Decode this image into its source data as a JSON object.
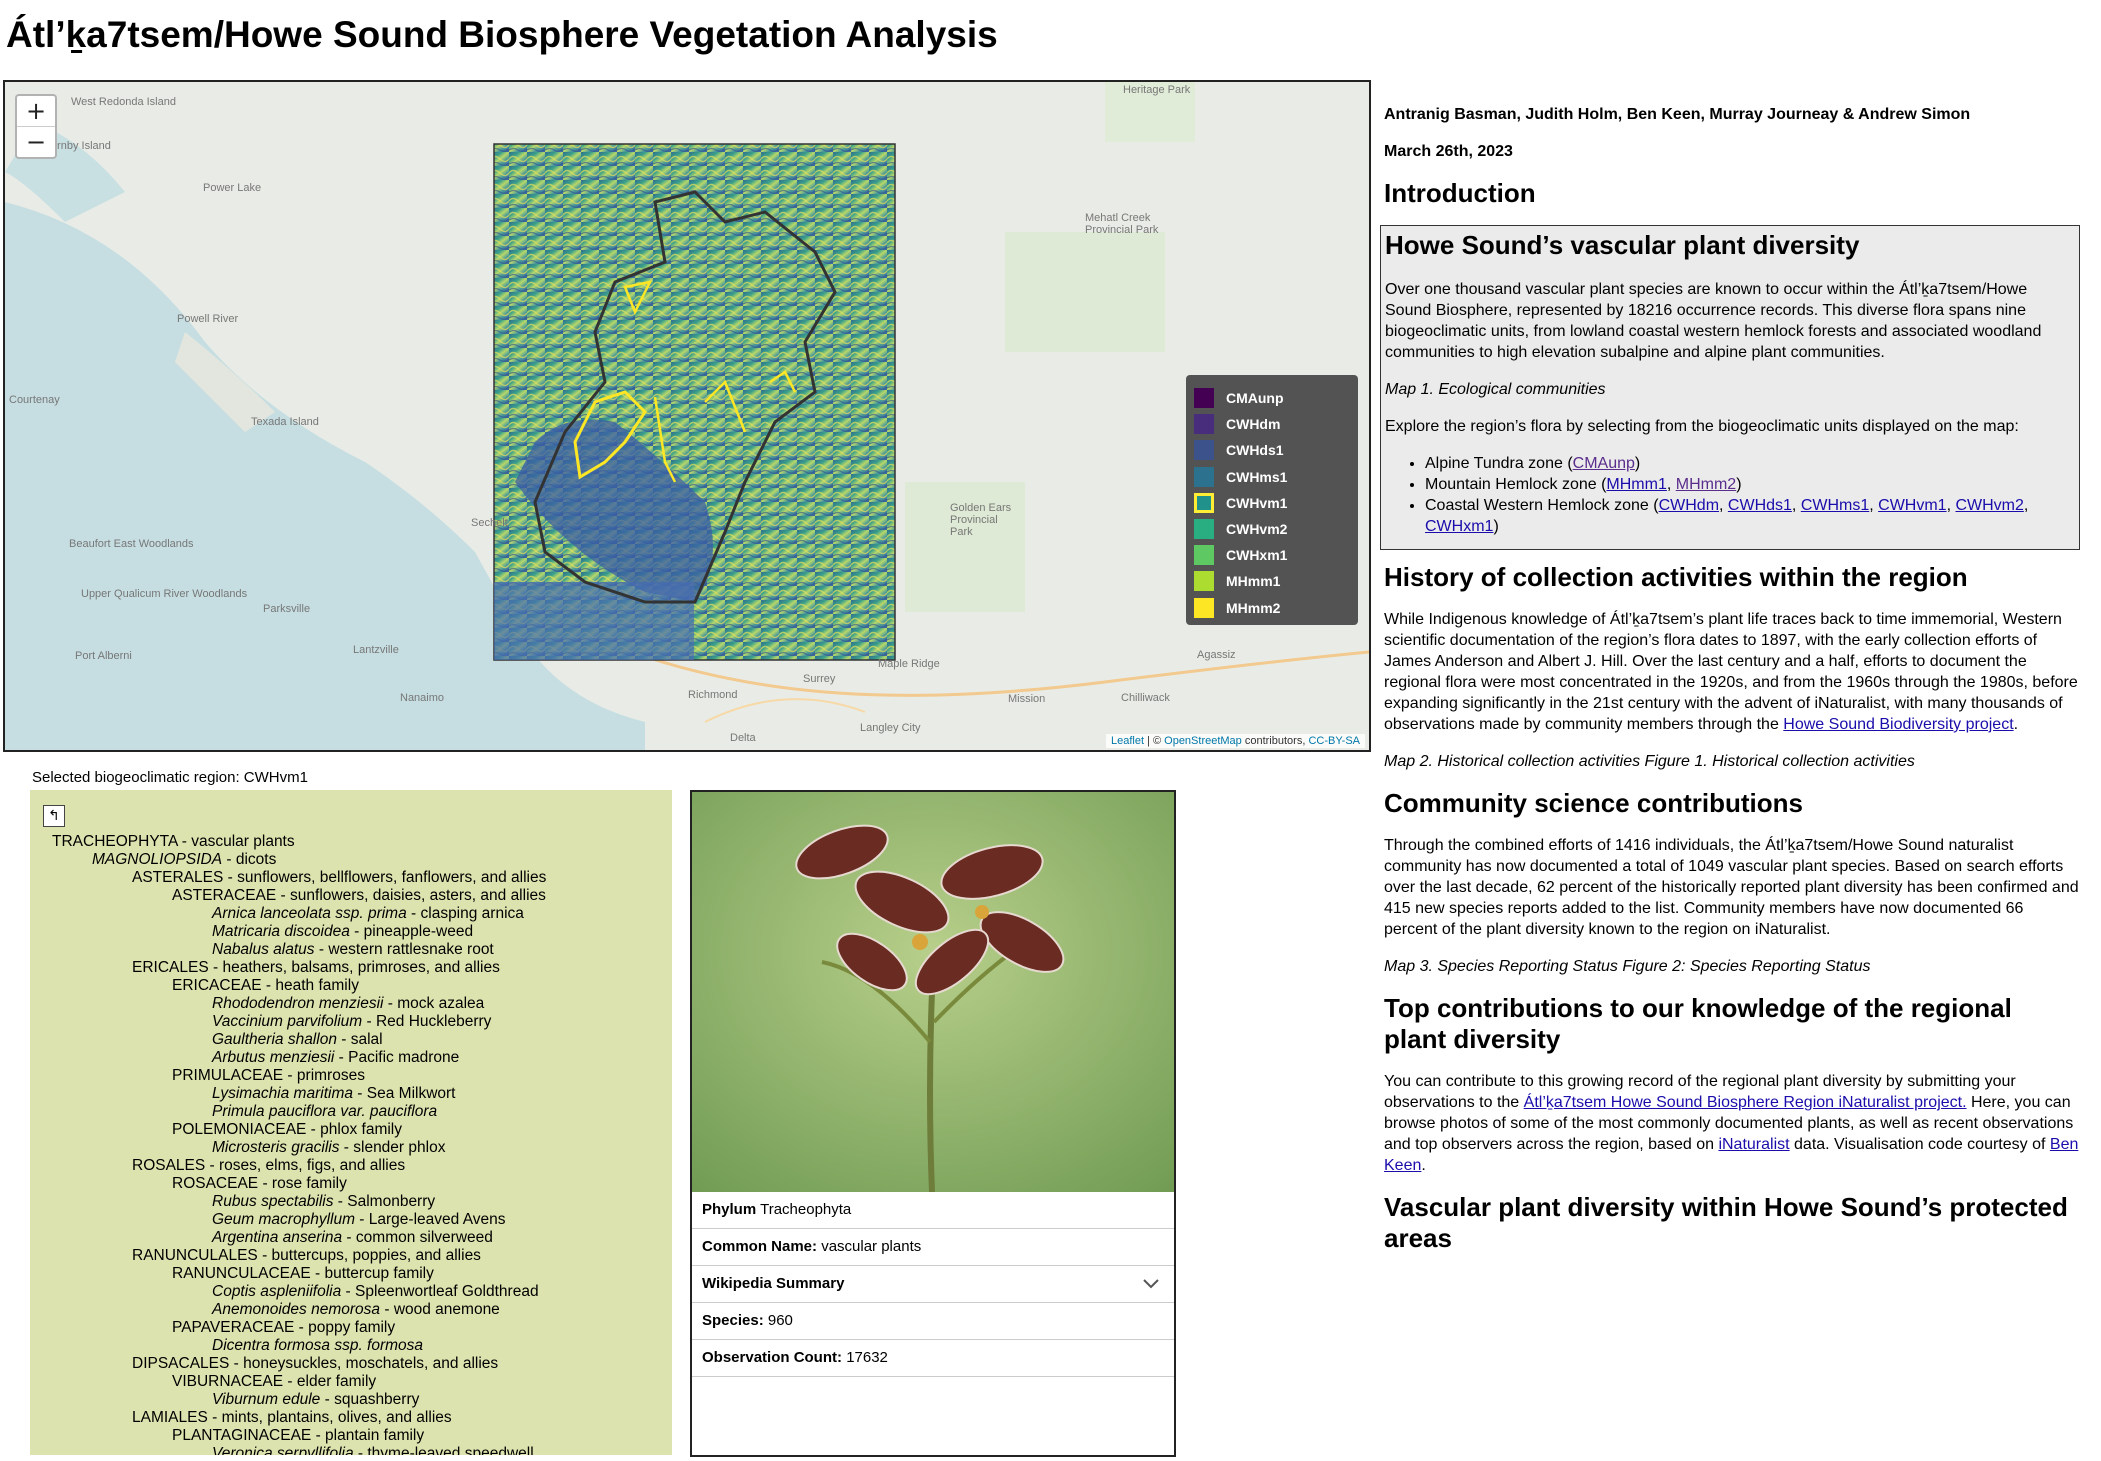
{
  "title": "Átl’ḵa7tsem/Howe Sound Biosphere Vegetation Analysis",
  "map": {
    "zoom_in": "+",
    "zoom_out": "−",
    "places": [
      "West Redonda Island",
      "Powell River",
      "Courtenay",
      "Texada Island",
      "Parksville",
      "Port Alberni",
      "Nanaimo",
      "Beaufort East Woodlands",
      "Upper Qualicum River Woodlands",
      "Lantzville",
      "Richmond",
      "Surrey",
      "Delta",
      "Langley City",
      "Maple Ridge",
      "Mission",
      "Chilliwack",
      "Agassiz",
      "Golden Ears Provincial Park",
      "Mehatl Creek Provincial Park",
      "Heritage Park",
      "Sechelt",
      "Power Lake",
      "Hornby Island"
    ],
    "legend": [
      {
        "code": "CMAunp",
        "color": "#440154"
      },
      {
        "code": "CWHdm",
        "color": "#472d7b"
      },
      {
        "code": "CWHds1",
        "color": "#3b528b"
      },
      {
        "code": "CWHms1",
        "color": "#2c728e"
      },
      {
        "code": "CWHvm1",
        "color": "#21918c"
      },
      {
        "code": "CWHvm2",
        "color": "#28ae80"
      },
      {
        "code": "CWHxm1",
        "color": "#5ec962"
      },
      {
        "code": "MHmm1",
        "color": "#addc30"
      },
      {
        "code": "MHmm2",
        "color": "#fde725"
      }
    ],
    "selected_code": "CWHvm1",
    "attribution": {
      "leaflet": "Leaflet",
      "sep": " | © ",
      "osm": "OpenStreetMap",
      "contrib": " contributors, ",
      "license": "CC-BY-SA"
    }
  },
  "selected_region_text": "Selected biogeoclimatic region: CWHvm1",
  "tree": {
    "up_icon": "↰",
    "rows": [
      {
        "level": 0,
        "name": "TRACHEOPHYTA",
        "common": "vascular plants",
        "italic": false
      },
      {
        "level": 1,
        "name": "MAGNOLIOPSIDA",
        "common": "dicots",
        "italic": true
      },
      {
        "level": 2,
        "name": "ASTERALES",
        "common": "sunflowers, bellflowers, fanflowers, and allies",
        "italic": false
      },
      {
        "level": 3,
        "name": "ASTERACEAE",
        "common": "sunflowers, daisies, asters, and allies",
        "italic": false
      },
      {
        "level": 4,
        "name": "Arnica lanceolata ssp. prima",
        "common": "clasping arnica",
        "italic": true
      },
      {
        "level": 4,
        "name": "Matricaria discoidea",
        "common": "pineapple-weed",
        "italic": true
      },
      {
        "level": 4,
        "name": "Nabalus alatus",
        "common": "western rattlesnake root",
        "italic": true
      },
      {
        "level": 2,
        "name": "ERICALES",
        "common": "heathers, balsams, primroses, and allies",
        "italic": false
      },
      {
        "level": 3,
        "name": "ERICACEAE",
        "common": "heath family",
        "italic": false
      },
      {
        "level": 4,
        "name": "Rhododendron menziesii",
        "common": "mock azalea",
        "italic": true
      },
      {
        "level": 4,
        "name": "Vaccinium parvifolium",
        "common": "Red Huckleberry",
        "italic": true
      },
      {
        "level": 4,
        "name": "Gaultheria shallon",
        "common": "salal",
        "italic": true
      },
      {
        "level": 4,
        "name": "Arbutus menziesii",
        "common": "Pacific madrone",
        "italic": true
      },
      {
        "level": 3,
        "name": "PRIMULACEAE",
        "common": "primroses",
        "italic": false
      },
      {
        "level": 4,
        "name": "Lysimachia maritima",
        "common": "Sea Milkwort",
        "italic": true
      },
      {
        "level": 4,
        "name": "Primula pauciflora var. pauciflora",
        "common": "",
        "italic": true
      },
      {
        "level": 3,
        "name": "POLEMONIACEAE",
        "common": "phlox family",
        "italic": false
      },
      {
        "level": 4,
        "name": "Microsteris gracilis",
        "common": "slender phlox",
        "italic": true
      },
      {
        "level": 2,
        "name": "ROSALES",
        "common": "roses, elms, figs, and allies",
        "italic": false
      },
      {
        "level": 3,
        "name": "ROSACEAE",
        "common": "rose family",
        "italic": false
      },
      {
        "level": 4,
        "name": "Rubus spectabilis",
        "common": "Salmonberry",
        "italic": true
      },
      {
        "level": 4,
        "name": "Geum macrophyllum",
        "common": "Large-leaved Avens",
        "italic": true
      },
      {
        "level": 4,
        "name": "Argentina anserina",
        "common": "common silverweed",
        "italic": true
      },
      {
        "level": 2,
        "name": "RANUNCULALES",
        "common": "buttercups, poppies, and allies",
        "italic": false
      },
      {
        "level": 3,
        "name": "RANUNCULACEAE",
        "common": "buttercup family",
        "italic": false
      },
      {
        "level": 4,
        "name": "Coptis aspleniifolia",
        "common": "Spleenwortleaf Goldthread",
        "italic": true
      },
      {
        "level": 4,
        "name": "Anemonoides nemorosa",
        "common": "wood anemone",
        "italic": true
      },
      {
        "level": 3,
        "name": "PAPAVERACEAE",
        "common": "poppy family",
        "italic": false
      },
      {
        "level": 4,
        "name": "Dicentra formosa ssp. formosa",
        "common": "",
        "italic": true
      },
      {
        "level": 2,
        "name": "DIPSACALES",
        "common": "honeysuckles, moschatels, and allies",
        "italic": false
      },
      {
        "level": 3,
        "name": "VIBURNACEAE",
        "common": "elder family",
        "italic": false
      },
      {
        "level": 4,
        "name": "Viburnum edule",
        "common": "squashberry",
        "italic": true
      },
      {
        "level": 2,
        "name": "LAMIALES",
        "common": "mints, plantains, olives, and allies",
        "italic": false
      },
      {
        "level": 3,
        "name": "PLANTAGINACEAE",
        "common": "plantain family",
        "italic": false
      },
      {
        "level": 4,
        "name": "Veronica serpyllifolia",
        "common": "thyme-leaved speedwell",
        "italic": true
      }
    ]
  },
  "card": {
    "phylum_label": "Phylum",
    "phylum_value": "Tracheophyta",
    "common_label": "Common Name:",
    "common_value": "vascular plants",
    "wiki_label": "Wikipedia Summary",
    "chevron_icon": "chevron-down-icon",
    "species_label": "Species:",
    "species_value": "960",
    "obs_label": "Observation Count:",
    "obs_value": "17632"
  },
  "right": {
    "authors": "Antranig Basman, Judith Holm, Ben Keen, Murray Journeay & Andrew Simon",
    "date": "March 26th, 2023",
    "intro_heading": "Introduction",
    "diversity_heading": "Howe Sound’s vascular plant diversity",
    "diversity_p": "Over one thousand vascular plant species are known to occur within the Átl’ḵa7tsem/Howe Sound Biosphere, represented by 18216 occurrence records. This diverse flora spans nine biogeoclimatic units, from lowland coastal western hemlock forests and associated woodland communities to high elevation subalpine and alpine plant communities.",
    "map1_caption": "Map 1. Ecological communities",
    "explore_p": "Explore the region’s flora by selecting from the biogeoclimatic units displayed on the map:",
    "zones": {
      "alpine": "Alpine Tundra zone (",
      "mountain": "Mountain Hemlock zone (",
      "coastal": "Coastal Western Hemlock zone (",
      "sep": ", ",
      "close": ")"
    },
    "history_heading": "History of collection activities within the region",
    "history_p": "While Indigenous knowledge of Átl’ḵa7tsem’s plant life traces back to time immemorial, Western scientific documentation of the region’s flora dates to 1897, with the early collection efforts of James Anderson and Albert J. Hill. Over the last century and a half, efforts to document the regional flora were most concentrated in the 1920s, and from the 1960s through the 1980s, before expanding significantly in the 21st century with the advent of iNaturalist, with many thousands of observations made by community members through the ",
    "history_link": "Howe Sound Biodiversity project",
    "history_end": ".",
    "map2_caption": "Map 2. Historical collection activities Figure 1. Historical collection activities",
    "community_heading": "Community science contributions",
    "community_p": "Through the combined efforts of 1416 individuals, the Átl’ḵa7tsem/Howe Sound naturalist community has now documented a total of 1049 vascular plant species. Based on search efforts over the last decade, 62 percent of the historically reported plant diversity has been confirmed and 415 new species reports added to the list. Community members have now documented 66 percent of the plant diversity known to the region on iNaturalist.",
    "map3_caption": "Map 3. Species Reporting Status Figure 2: Species Reporting Status",
    "top_heading": "Top contributions to our knowledge of the regional plant diversity",
    "top_p1": "You can contribute to this growing record of the regional plant diversity by submitting your observations to the ",
    "top_link1": "Átl’ḵa7tsem Howe Sound Biosphere Region iNaturalist project.",
    "top_p2": " Here, you can browse photos of some of the most commonly documented plants, as well as recent observations and top observers across the region, based on ",
    "top_link2": "iNaturalist",
    "top_p3": " data. Visualisation code courtesy of ",
    "top_link3": "Ben Keen",
    "top_p4": ".",
    "protected_heading": "Vascular plant diversity within Howe Sound’s protected areas"
  }
}
